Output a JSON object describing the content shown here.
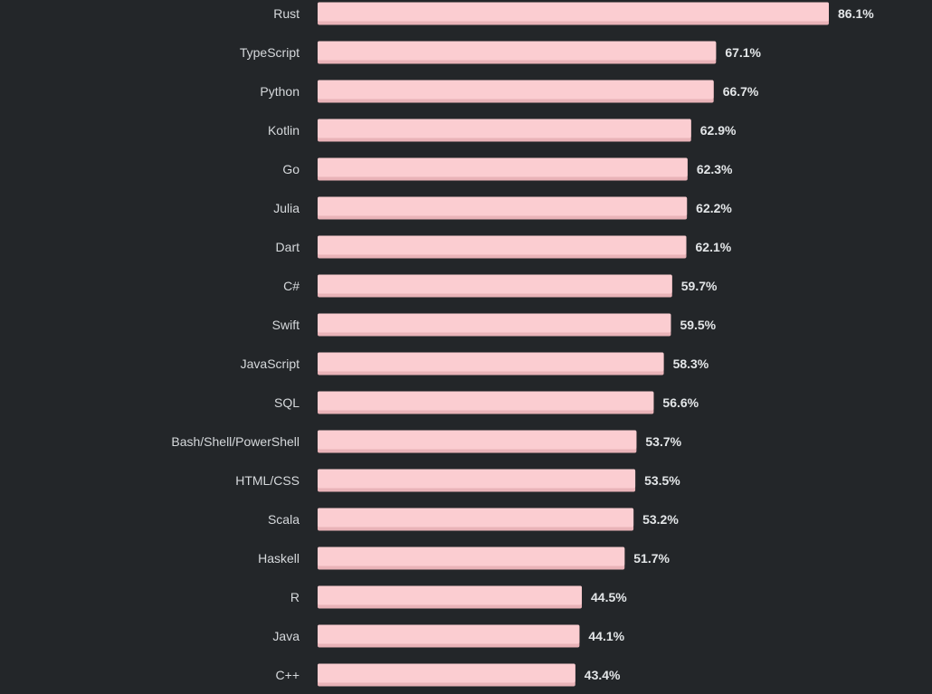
{
  "chart_data": {
    "type": "bar",
    "orientation": "horizontal",
    "categories": [
      "Rust",
      "TypeScript",
      "Python",
      "Kotlin",
      "Go",
      "Julia",
      "Dart",
      "C#",
      "Swift",
      "JavaScript",
      "SQL",
      "Bash/Shell/PowerShell",
      "HTML/CSS",
      "Scala",
      "Haskell",
      "R",
      "Java",
      "C++"
    ],
    "values": [
      86.1,
      67.1,
      66.7,
      62.9,
      62.3,
      62.2,
      62.1,
      59.7,
      59.5,
      58.3,
      56.6,
      53.7,
      53.5,
      53.2,
      51.7,
      44.5,
      44.1,
      43.4
    ],
    "value_labels": [
      "86.1%",
      "67.1%",
      "66.7%",
      "62.9%",
      "62.3%",
      "62.2%",
      "62.1%",
      "59.7%",
      "59.5%",
      "58.3%",
      "56.6%",
      "53.7%",
      "53.5%",
      "53.2%",
      "51.7%",
      "44.5%",
      "44.1%",
      "43.4%"
    ],
    "unit": "%",
    "xlim": [
      0,
      100
    ],
    "grid": false,
    "legend": "none",
    "title": "",
    "xlabel": "",
    "ylabel": ""
  },
  "colors": {
    "background": "#232629",
    "bar_fill": "#fbcdd1",
    "bar_bottom": "#e9b3b8",
    "category_text": "#d6d9dc",
    "value_text": "#e3e6e8"
  }
}
